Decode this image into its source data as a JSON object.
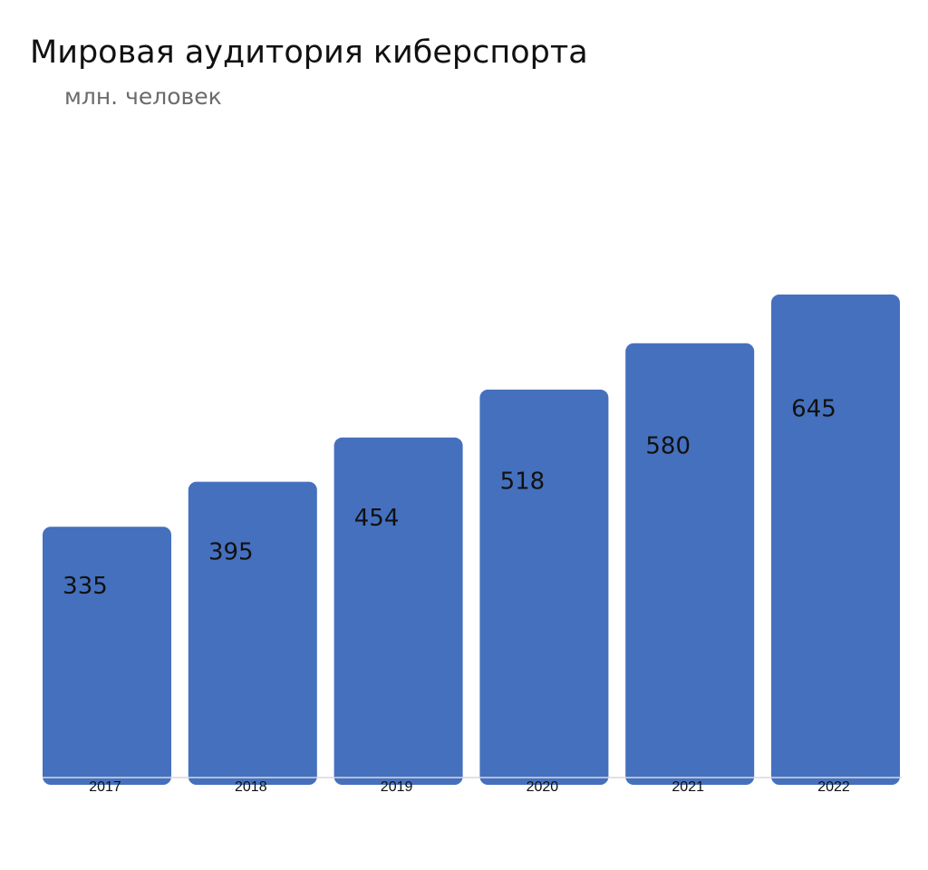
{
  "chart_data": {
    "type": "bar",
    "title": "Мировая аудитория киберспорта",
    "subtitle": "млн. человек",
    "categories": [
      "2017",
      "2018",
      "2019",
      "2020",
      "2021",
      "2022"
    ],
    "values": [
      335,
      395,
      454,
      518,
      580,
      645
    ],
    "ylim": [
      0,
      645
    ],
    "grid": false,
    "bar_color": "#4570BE",
    "axis_color": "#D9D9D9"
  }
}
